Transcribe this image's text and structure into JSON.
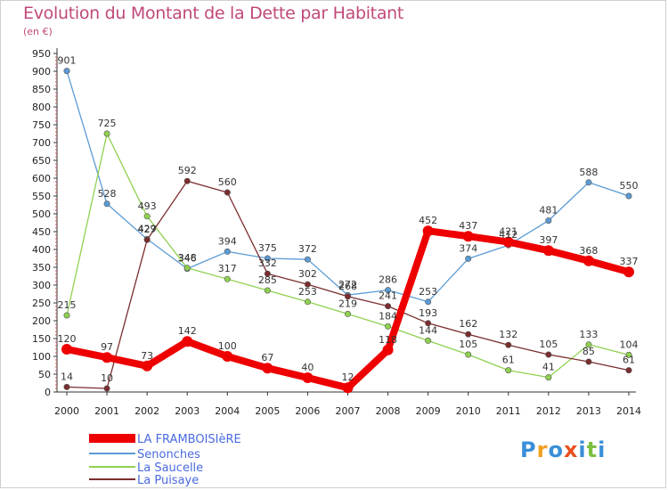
{
  "header": {
    "title": "Evolution du Montant de la Dette par Habitant",
    "subtitle": "(en €)"
  },
  "logo": {
    "text": "Proxiti",
    "colors": [
      "#3a8fd8",
      "#f0a020",
      "#3a8fd8",
      "#e85020",
      "#3a8fd8",
      "#7cc040",
      "#3a8fd8"
    ]
  },
  "chart_data": {
    "type": "line",
    "title": "Evolution du Montant de la Dette par Habitant",
    "subtitle": "(en €)",
    "x": [
      2000,
      2001,
      2002,
      2003,
      2004,
      2005,
      2006,
      2007,
      2008,
      2009,
      2010,
      2011,
      2012,
      2013,
      2014
    ],
    "ylim": [
      0,
      950
    ],
    "yticks": [
      0,
      50,
      100,
      150,
      200,
      250,
      300,
      350,
      400,
      450,
      500,
      550,
      600,
      650,
      700,
      750,
      800,
      850,
      900,
      950
    ],
    "grid": false,
    "legend_position": "bottom-left",
    "series": [
      {
        "name": "LA FRAMBOISIèRE",
        "color": "#ee0000",
        "values": [
          120,
          97,
          73,
          142,
          100,
          67,
          40,
          12,
          118,
          452,
          437,
          421,
          397,
          368,
          337
        ]
      },
      {
        "name": "Senonches",
        "color": "#5b9bd5",
        "values": [
          901,
          528,
          429,
          346,
          394,
          375,
          372,
          272,
          286,
          253,
          374,
          412,
          481,
          588,
          550
        ]
      },
      {
        "name": "La Saucelle",
        "color": "#8fd14f",
        "values": [
          215,
          725,
          493,
          348,
          317,
          285,
          253,
          219,
          184,
          144,
          105,
          61,
          41,
          133,
          104
        ]
      },
      {
        "name": "La Puisaye",
        "color": "#7b2d2d",
        "values": [
          14,
          10,
          427,
          592,
          560,
          332,
          302,
          268,
          241,
          193,
          162,
          132,
          105,
          85,
          61
        ]
      }
    ]
  }
}
